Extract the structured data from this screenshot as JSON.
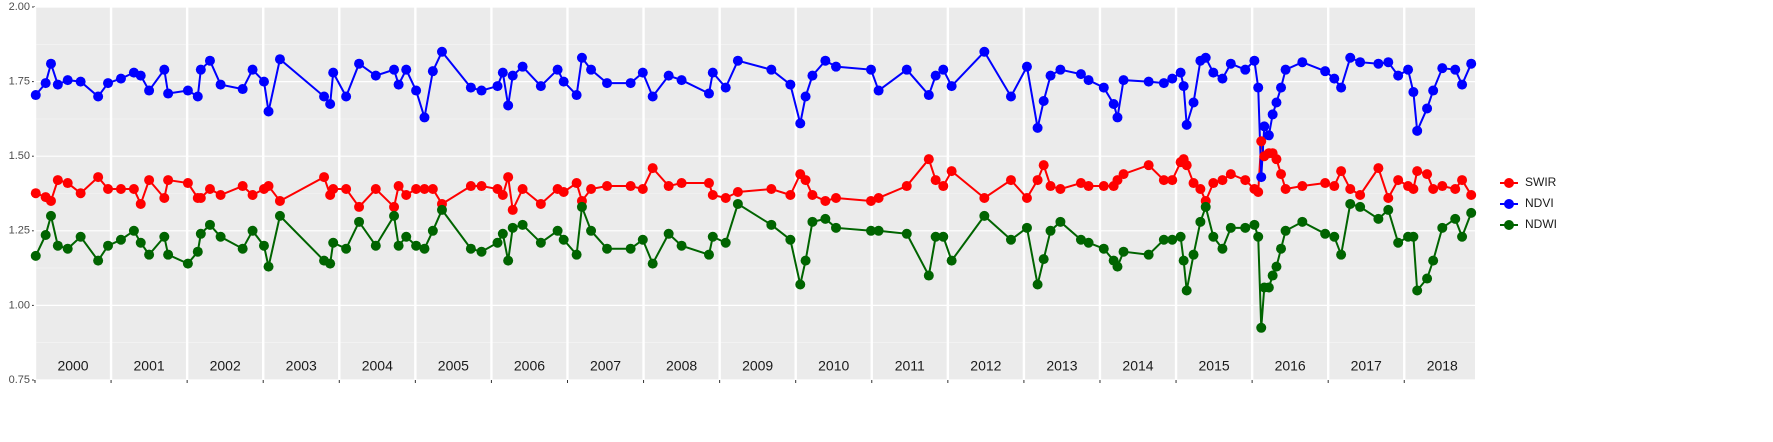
{
  "chart_data": {
    "type": "line",
    "x": [
      2000.01,
      2000.14,
      2000.21,
      2000.3,
      2000.43,
      2000.6,
      2000.83,
      2000.96,
      2001.13,
      2001.3,
      2001.39,
      2001.5,
      2001.7,
      2001.75,
      2002.01,
      2002.14,
      2002.18,
      2002.3,
      2002.44,
      2002.73,
      2002.86,
      2003.01,
      2003.07,
      2003.22,
      2003.8,
      2003.88,
      2003.92,
      2004.09,
      2004.26,
      2004.48,
      2004.72,
      2004.78,
      2004.88,
      2005.01,
      2005.12,
      2005.23,
      2005.35,
      2005.73,
      2005.87,
      2006.08,
      2006.15,
      2006.22,
      2006.28,
      2006.41,
      2006.65,
      2006.87,
      2006.95,
      2007.12,
      2007.19,
      2007.31,
      2007.52,
      2007.83,
      2007.99,
      2008.12,
      2008.33,
      2008.5,
      2008.86,
      2008.91,
      2009.08,
      2009.24,
      2009.68,
      2009.93,
      2010.06,
      2010.13,
      2010.22,
      2010.39,
      2010.53,
      2010.99,
      2011.09,
      2011.46,
      2011.75,
      2011.84,
      2011.94,
      2012.05,
      2012.48,
      2012.83,
      2013.04,
      2013.18,
      2013.26,
      2013.35,
      2013.48,
      2013.75,
      2013.85,
      2014.05,
      2014.18,
      2014.23,
      2014.31,
      2014.64,
      2014.84,
      2014.95,
      2015.06,
      2015.1,
      2015.14,
      2015.23,
      2015.32,
      2015.39,
      2015.49,
      2015.61,
      2015.72,
      2015.91,
      2016.03,
      2016.08,
      2016.12,
      2016.16,
      2016.22,
      2016.27,
      2016.32,
      2016.38,
      2016.44,
      2016.66,
      2016.96,
      2017.08,
      2017.17,
      2017.29,
      2017.42,
      2017.66,
      2017.79,
      2017.92,
      2018.05,
      2018.12,
      2018.17,
      2018.3,
      2018.38,
      2018.5,
      2018.67,
      2018.76,
      2018.88
    ],
    "series": [
      {
        "name": "SWIR",
        "color": "#ff0000",
        "values": [
          1.376,
          1.363,
          1.35,
          1.42,
          1.41,
          1.376,
          1.43,
          1.39,
          1.39,
          1.39,
          1.34,
          1.42,
          1.36,
          1.42,
          1.41,
          1.36,
          1.36,
          1.39,
          1.37,
          1.4,
          1.37,
          1.39,
          1.4,
          1.35,
          1.43,
          1.37,
          1.39,
          1.39,
          1.33,
          1.39,
          1.33,
          1.4,
          1.37,
          1.39,
          1.39,
          1.39,
          1.34,
          1.4,
          1.4,
          1.39,
          1.37,
          1.43,
          1.32,
          1.39,
          1.34,
          1.39,
          1.38,
          1.41,
          1.35,
          1.39,
          1.4,
          1.4,
          1.39,
          1.46,
          1.4,
          1.41,
          1.41,
          1.37,
          1.36,
          1.38,
          1.39,
          1.37,
          1.44,
          1.42,
          1.37,
          1.35,
          1.36,
          1.35,
          1.36,
          1.4,
          1.49,
          1.42,
          1.4,
          1.45,
          1.36,
          1.42,
          1.36,
          1.42,
          1.47,
          1.4,
          1.39,
          1.41,
          1.4,
          1.4,
          1.4,
          1.42,
          1.44,
          1.47,
          1.42,
          1.42,
          1.48,
          1.49,
          1.47,
          1.41,
          1.39,
          1.35,
          1.41,
          1.42,
          1.44,
          1.42,
          1.39,
          1.38,
          1.55,
          1.5,
          1.51,
          1.51,
          1.49,
          1.44,
          1.39,
          1.4,
          1.41,
          1.4,
          1.45,
          1.39,
          1.37,
          1.46,
          1.36,
          1.42,
          1.4,
          1.39,
          1.45,
          1.44,
          1.39,
          1.4,
          1.39,
          1.42,
          1.37
        ]
      },
      {
        "name": "NDVI",
        "color": "#0000ff",
        "values": [
          1.705,
          1.745,
          1.81,
          1.74,
          1.755,
          1.75,
          1.7,
          1.745,
          1.76,
          1.78,
          1.77,
          1.72,
          1.79,
          1.71,
          1.72,
          1.7,
          1.79,
          1.82,
          1.74,
          1.725,
          1.79,
          1.75,
          1.65,
          1.825,
          1.7,
          1.675,
          1.78,
          1.7,
          1.81,
          1.77,
          1.79,
          1.74,
          1.79,
          1.72,
          1.63,
          1.785,
          1.85,
          1.73,
          1.72,
          1.735,
          1.78,
          1.67,
          1.77,
          1.8,
          1.735,
          1.79,
          1.75,
          1.705,
          1.83,
          1.79,
          1.745,
          1.745,
          1.78,
          1.7,
          1.77,
          1.755,
          1.71,
          1.78,
          1.73,
          1.82,
          1.79,
          1.74,
          1.61,
          1.7,
          1.77,
          1.82,
          1.8,
          1.79,
          1.72,
          1.79,
          1.705,
          1.77,
          1.79,
          1.735,
          1.85,
          1.7,
          1.8,
          1.595,
          1.685,
          1.77,
          1.79,
          1.775,
          1.755,
          1.73,
          1.675,
          1.63,
          1.755,
          1.75,
          1.745,
          1.76,
          1.78,
          1.735,
          1.605,
          1.68,
          1.82,
          1.83,
          1.78,
          1.76,
          1.81,
          1.79,
          1.82,
          1.73,
          1.43,
          1.6,
          1.57,
          1.64,
          1.68,
          1.73,
          1.79,
          1.815,
          1.785,
          1.76,
          1.73,
          1.83,
          1.815,
          1.81,
          1.815,
          1.77,
          1.79,
          1.715,
          1.585,
          1.66,
          1.72,
          1.795,
          1.79,
          1.74,
          1.81
        ]
      },
      {
        "name": "NDWI",
        "color": "#006400",
        "values": [
          1.166,
          1.236,
          1.3,
          1.2,
          1.19,
          1.23,
          1.15,
          1.2,
          1.22,
          1.25,
          1.21,
          1.17,
          1.23,
          1.17,
          1.14,
          1.18,
          1.24,
          1.27,
          1.23,
          1.19,
          1.25,
          1.2,
          1.13,
          1.3,
          1.15,
          1.14,
          1.21,
          1.19,
          1.28,
          1.2,
          1.3,
          1.2,
          1.23,
          1.2,
          1.19,
          1.25,
          1.32,
          1.19,
          1.18,
          1.21,
          1.24,
          1.15,
          1.26,
          1.27,
          1.21,
          1.25,
          1.22,
          1.17,
          1.33,
          1.25,
          1.19,
          1.19,
          1.22,
          1.14,
          1.24,
          1.2,
          1.17,
          1.23,
          1.21,
          1.34,
          1.27,
          1.22,
          1.07,
          1.15,
          1.28,
          1.29,
          1.26,
          1.25,
          1.25,
          1.24,
          1.1,
          1.23,
          1.23,
          1.15,
          1.3,
          1.22,
          1.26,
          1.07,
          1.155,
          1.25,
          1.28,
          1.22,
          1.21,
          1.19,
          1.15,
          1.13,
          1.18,
          1.17,
          1.22,
          1.22,
          1.23,
          1.15,
          1.05,
          1.17,
          1.28,
          1.33,
          1.23,
          1.19,
          1.26,
          1.26,
          1.27,
          1.23,
          0.925,
          1.06,
          1.06,
          1.1,
          1.13,
          1.19,
          1.25,
          1.28,
          1.24,
          1.23,
          1.17,
          1.34,
          1.33,
          1.29,
          1.32,
          1.21,
          1.23,
          1.23,
          1.05,
          1.09,
          1.15,
          1.26,
          1.29,
          1.23,
          1.31
        ]
      }
    ],
    "xlim": [
      2000.0,
      2018.93
    ],
    "xticks": [
      2000,
      2001,
      2002,
      2003,
      2004,
      2005,
      2006,
      2007,
      2008,
      2009,
      2010,
      2011,
      2012,
      2013,
      2014,
      2015,
      2016,
      2017,
      2018
    ],
    "year_labels": [
      2000,
      2001,
      2002,
      2003,
      2004,
      2005,
      2006,
      2007,
      2008,
      2009,
      2010,
      2011,
      2012,
      2013,
      2014,
      2015,
      2016,
      2017,
      2018
    ],
    "ylim": [
      0.75,
      2.0
    ],
    "yticks": [
      0.75,
      {
        "value": 1,
        "label": "1.00"
      },
      1.25,
      {
        "value": 1.5,
        "label": "1.50"
      },
      1.75,
      {
        "value": 2,
        "label": "2.00"
      }
    ],
    "grid": true,
    "legend": "right"
  }
}
